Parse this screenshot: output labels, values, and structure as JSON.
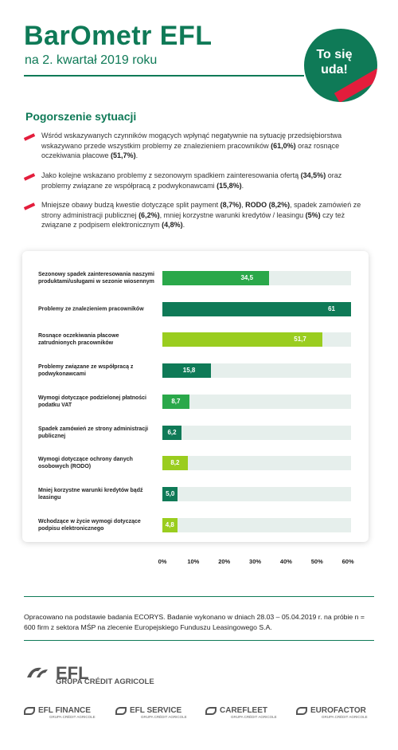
{
  "header": {
    "title": "BarOmetr EFL",
    "subtitle": "na 2. kwartał 2019 roku",
    "badge": [
      "To się",
      "uda!"
    ]
  },
  "section": {
    "heading": "Pogorszenie sytuacji",
    "bullets": [
      [
        "Wśród wskazywanych czynników mogących wpłynąć negatywnie na sytuację przedsiębiorstwa wskazywano przede wszystkim  problemy ze znalezieniem pracowników ",
        "(61,0%)",
        " oraz rosnące oczekiwania płacowe ",
        "(51,7%)",
        "."
      ],
      [
        "Jako kolejne wskazano problemy z sezonowym spadkiem zainteresowania ofertą ",
        "(34,5%)",
        " oraz problemy związane ze współpracą z podwykonawcami ",
        "(15,8%)",
        "."
      ],
      [
        "Mniejsze obawy budzą kwestie dotyczące split payment ",
        "(8,7%)",
        ", ",
        "RODO (8,2%)",
        ", spadek zamówień ze strony administracji publicznej ",
        "(6,2%)",
        ", mniej korzystne warunki kredytów / leasingu ",
        "(5%)",
        " czy też związane z podpisem elektronicznym ",
        "(4,8%)",
        "."
      ]
    ]
  },
  "chart_data": {
    "type": "hbar",
    "categories": [
      "Sezonowy spadek zainteresowania naszymi produktami/usługami w sezonie wiosennym",
      "Problemy ze znalezieniem pracowników",
      "Rosnące oczekiwania płacowe zatrudnionych pracowników",
      "Problemy związane ze współpracą z podwykonawcami",
      "Wymogi dotyczące podzielonej płatności podatku VAT",
      "Spadek zamówień ze strony administracji publicznej",
      "Wymogi dotyczące ochrony danych osobowych (RODO)",
      "Mniej korzystne warunki kredytów bądź leasingu",
      "Wchodzące w życie wymogi dotyczące podpisu elektronicznego"
    ],
    "values": [
      34.5,
      61,
      51.7,
      15.8,
      8.7,
      6.2,
      8.2,
      5.0,
      4.8
    ],
    "value_labels": [
      "34,5",
      "61",
      "51,7",
      "15,8",
      "8,7",
      "6,2",
      "8,2",
      "5,0",
      "4,8"
    ],
    "colors": [
      "#2aa84a",
      "#0f7a57",
      "#9acd1f",
      "#0f7a57",
      "#2aa84a",
      "#0f7a57",
      "#9acd1f",
      "#0f7a57",
      "#9acd1f"
    ],
    "track_color": "#e6efec",
    "xlim": [
      0,
      61
    ],
    "xticks": [
      {
        "value": 0,
        "label": "0%"
      },
      {
        "value": 10,
        "label": "10%"
      },
      {
        "value": 20,
        "label": "20%"
      },
      {
        "value": 30,
        "label": "30%"
      },
      {
        "value": 40,
        "label": "40%"
      },
      {
        "value": 50,
        "label": "50%"
      },
      {
        "value": 60,
        "label": "60%"
      }
    ]
  },
  "footer": {
    "note": "Opracowano na podstawie badania ECORYS. Badanie wykonano w dniach 28.03 – 05.04.2019 r. na próbie n = 600 firm z sektora MŚP na zlecenie Europejskiego Funduszu Leasingowego S.A.",
    "brand": {
      "name": "EFL",
      "group": "GRUPA CRÉDIT AGRICOLE"
    },
    "logos": [
      {
        "name": "EFL FINANCE",
        "group": "GRUPA CRÉDIT AGRICOLE"
      },
      {
        "name": "EFL SERVICE",
        "group": "GRUPA CRÉDIT AGRICOLE"
      },
      {
        "name": "CAREFLEET",
        "group": "GRUPA CRÉDIT AGRICOLE"
      },
      {
        "name": "EUROFACTOR",
        "group": "GRUPA CRÉDIT AGRICOLE"
      }
    ]
  }
}
